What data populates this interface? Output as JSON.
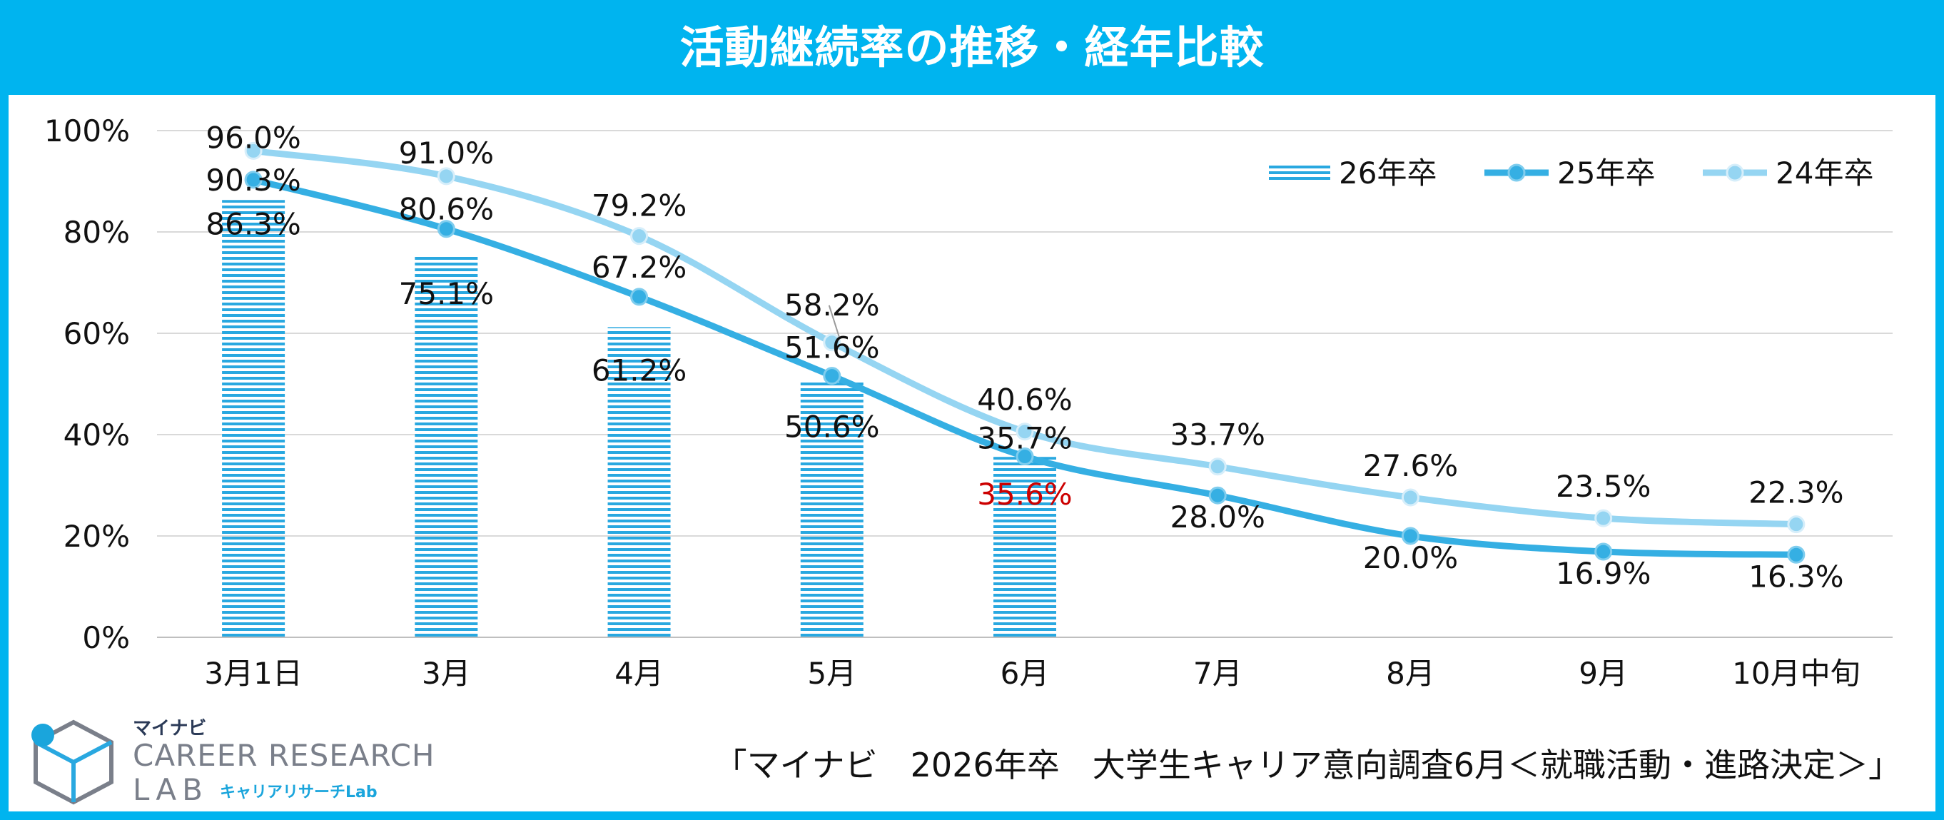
{
  "title": "活動継続率の推移・経年比較",
  "colors": {
    "frame": "#00b4ef",
    "series_26": "#29a8e0",
    "series_25": "#35afe3",
    "series_24": "#95d5f2",
    "highlight_label": "#cc0000",
    "grid": "#d9d9d9"
  },
  "chart_data": {
    "type": "bar",
    "title": "活動継続率の推移・経年比較",
    "categories": [
      "3月1日",
      "3月",
      "4月",
      "5月",
      "6月",
      "7月",
      "8月",
      "9月",
      "10月中旬"
    ],
    "y_ticks": [
      "0%",
      "20%",
      "40%",
      "60%",
      "80%",
      "100%"
    ],
    "ylim": [
      0,
      100
    ],
    "grid": true,
    "legend_position": "top-right",
    "series": [
      {
        "name": "26年卒",
        "type": "bar",
        "values": [
          86.3,
          75.1,
          61.2,
          50.6,
          35.6,
          null,
          null,
          null,
          null
        ],
        "labels": [
          "86.3%",
          "75.1%",
          "61.2%",
          "50.6%",
          "35.6%",
          "",
          "",
          "",
          ""
        ],
        "highlight_index": 4
      },
      {
        "name": "25年卒",
        "type": "line",
        "values": [
          90.3,
          80.6,
          67.2,
          51.6,
          35.7,
          28.0,
          20.0,
          16.9,
          16.3
        ],
        "labels": [
          "90.3%",
          "80.6%",
          "67.2%",
          "51.6%",
          "35.7%",
          "28.0%",
          "20.0%",
          "16.9%",
          "16.3%"
        ]
      },
      {
        "name": "24年卒",
        "type": "line",
        "values": [
          96.0,
          91.0,
          79.2,
          58.2,
          40.6,
          33.7,
          27.6,
          23.5,
          22.3
        ],
        "labels": [
          "96.0%",
          "91.0%",
          "79.2%",
          "58.2%",
          "40.6%",
          "33.7%",
          "27.6%",
          "23.5%",
          "22.3%"
        ]
      }
    ]
  },
  "logo": {
    "brand": "マイナビ",
    "line1": "CAREER RESEARCH",
    "line2": "LAB",
    "sub": "キャリアリサーチLab"
  },
  "source": "「マイナビ　2026年卒　大学生キャリア意向調査6月＜就職活動・進路決定＞」"
}
